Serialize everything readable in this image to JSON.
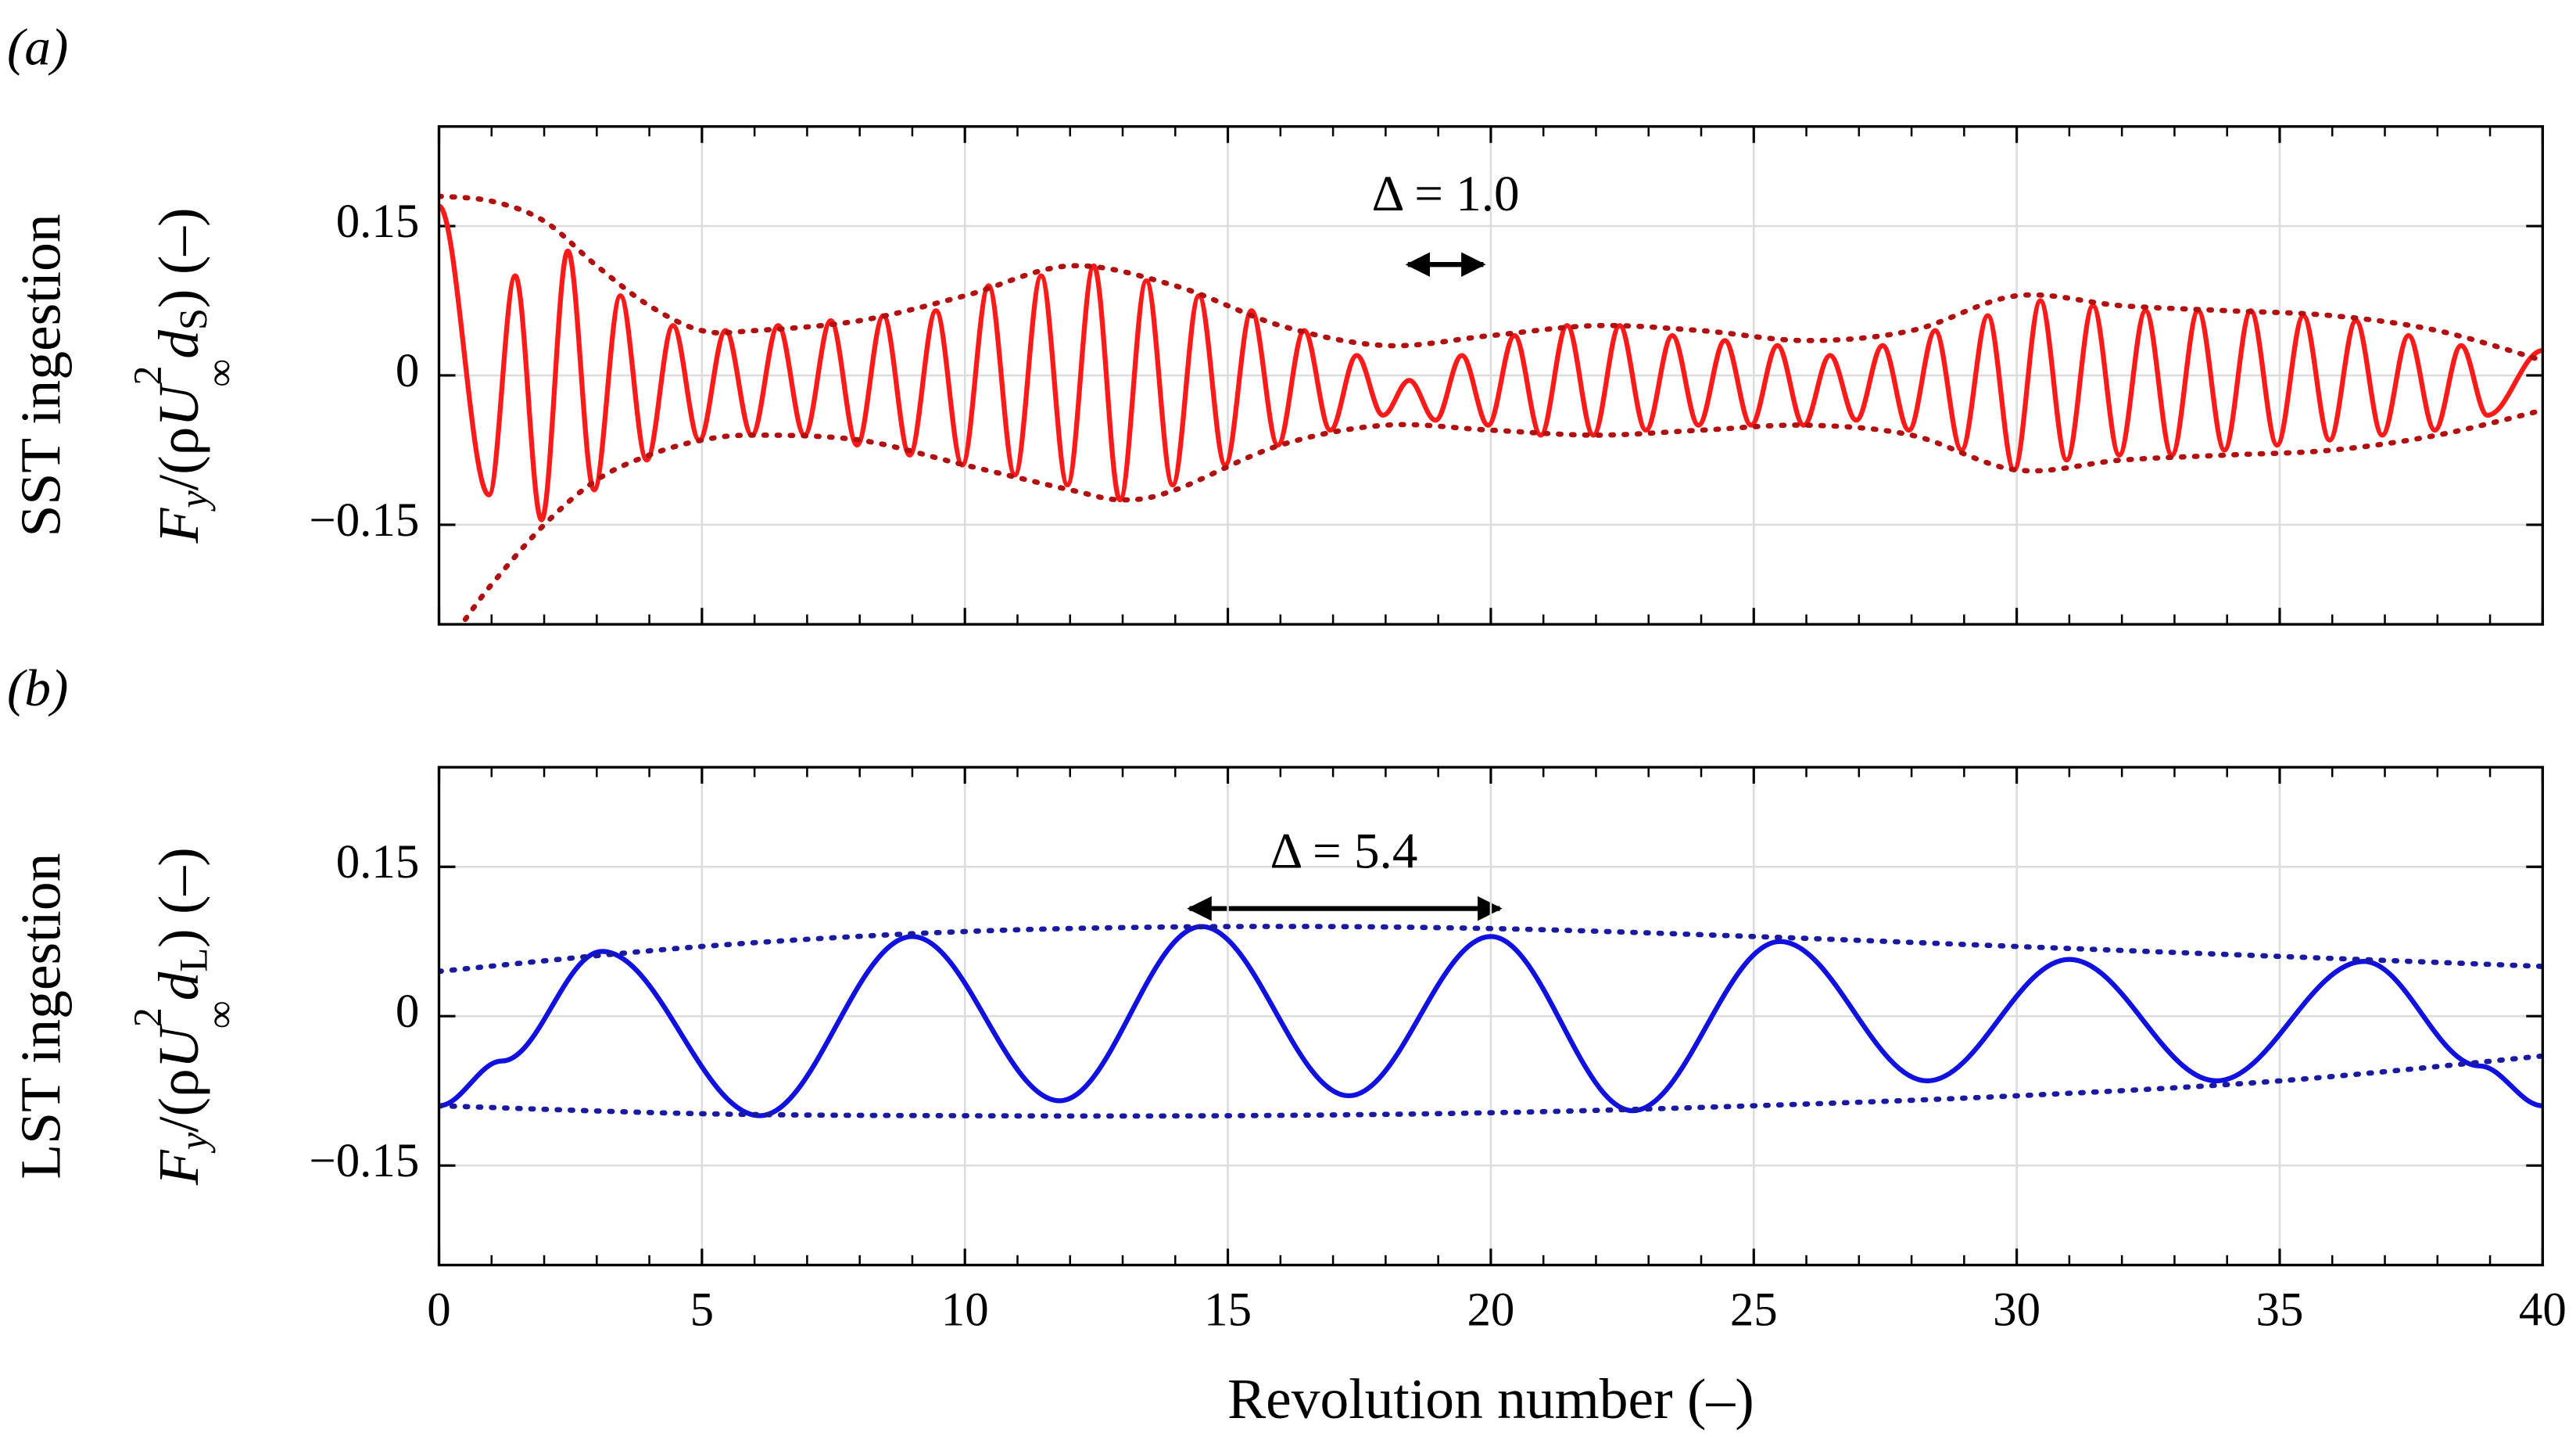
{
  "chart_data": [
    {
      "type": "line",
      "panel_label": "(a)",
      "ylabel_group": "SST ingestion",
      "ylabel": [
        "F",
        "y",
        "/(ρ",
        "U",
        "2",
        "∞",
        "d",
        "S",
        ") (–)"
      ],
      "xlim": [
        0,
        40
      ],
      "ylim": [
        -0.25,
        0.25
      ],
      "xticks": [
        0,
        5,
        10,
        15,
        20,
        25,
        30,
        35,
        40
      ],
      "show_xticklabels": false,
      "yticks": [
        {
          "value": -0.15,
          "label": "−0.15"
        },
        0,
        0.15
      ],
      "grid": true,
      "annotations": [
        {
          "text": "Δ = 1.0"
        }
      ],
      "series": [
        {
          "color": "#ff1a1a",
          "style": "solid",
          "x": [
            0,
            0.95,
            1.45,
            1.95,
            2.45,
            2.95,
            3.45,
            3.95,
            4.45,
            4.95,
            5.45,
            5.95,
            6.45,
            6.95,
            7.45,
            7.95,
            8.45,
            8.95,
            9.45,
            9.95,
            10.45,
            10.95,
            11.45,
            11.95,
            12.45,
            12.95,
            13.45,
            13.95,
            14.45,
            14.95,
            15.45,
            15.95,
            16.45,
            16.95,
            17.45,
            17.95,
            18.45,
            18.95,
            19.45,
            19.95,
            20.45,
            20.95,
            21.45,
            21.95,
            22.45,
            22.95,
            23.45,
            23.95,
            24.45,
            24.95,
            25.45,
            25.95,
            26.45,
            26.95,
            27.45,
            27.95,
            28.45,
            28.95,
            29.45,
            29.95,
            30.45,
            30.95,
            31.45,
            31.95,
            32.45,
            32.95,
            33.45,
            33.95,
            34.45,
            34.95,
            35.45,
            35.95,
            36.45,
            36.95,
            37.45,
            37.95,
            38.45,
            38.95,
            40
          ],
          "values": [
            0.17,
            -0.12,
            0.1,
            -0.145,
            0.125,
            -0.115,
            0.08,
            -0.085,
            0.05,
            -0.065,
            0.045,
            -0.06,
            0.05,
            -0.06,
            0.055,
            -0.07,
            0.06,
            -0.08,
            0.065,
            -0.09,
            0.09,
            -0.1,
            0.1,
            -0.11,
            0.11,
            -0.125,
            0.095,
            -0.11,
            0.08,
            -0.09,
            0.065,
            -0.07,
            0.045,
            -0.055,
            0.02,
            -0.04,
            -0.005,
            -0.045,
            0.02,
            -0.05,
            0.04,
            -0.06,
            0.05,
            -0.06,
            0.05,
            -0.055,
            0.04,
            -0.05,
            0.035,
            -0.05,
            0.03,
            -0.05,
            0.02,
            -0.045,
            0.03,
            -0.055,
            0.045,
            -0.075,
            0.06,
            -0.095,
            0.075,
            -0.085,
            0.07,
            -0.08,
            0.065,
            -0.08,
            0.065,
            -0.075,
            0.065,
            -0.07,
            0.06,
            -0.065,
            0.055,
            -0.06,
            0.04,
            -0.055,
            0.03,
            -0.04,
            0.025
          ]
        },
        {
          "color": "#b01010",
          "style": "dotted",
          "x": [
            0,
            1,
            2,
            3,
            4,
            5,
            6,
            8,
            10,
            12,
            14,
            16,
            18,
            20,
            22,
            24,
            26,
            28,
            30,
            32,
            34,
            36,
            38,
            40
          ],
          "values": [
            0.18,
            0.175,
            0.155,
            0.11,
            0.07,
            0.045,
            0.045,
            0.055,
            0.08,
            0.11,
            0.09,
            0.05,
            0.03,
            0.04,
            0.05,
            0.045,
            0.035,
            0.045,
            0.08,
            0.07,
            0.065,
            0.06,
            0.045,
            0.015
          ]
        },
        {
          "color": "#b01010",
          "style": "dotted",
          "x": [
            0.5,
            1,
            2,
            3,
            4,
            5,
            6,
            8,
            10,
            12,
            13,
            14,
            16,
            18,
            20,
            22,
            24,
            26,
            28,
            30,
            32,
            34,
            36,
            38,
            40
          ],
          "values": [
            -0.245,
            -0.21,
            -0.15,
            -0.105,
            -0.08,
            -0.065,
            -0.06,
            -0.065,
            -0.09,
            -0.115,
            -0.125,
            -0.115,
            -0.07,
            -0.05,
            -0.055,
            -0.06,
            -0.055,
            -0.05,
            -0.06,
            -0.095,
            -0.085,
            -0.08,
            -0.075,
            -0.06,
            -0.035
          ]
        }
      ]
    },
    {
      "type": "line",
      "panel_label": "(b)",
      "ylabel_group": "LST ingestion",
      "ylabel": [
        "F",
        "y",
        "/(ρ",
        "U",
        "2",
        "∞",
        "d",
        "L",
        ") (–)"
      ],
      "xlabel": "Revolution number (–)",
      "xlim": [
        0,
        40
      ],
      "ylim": [
        -0.25,
        0.25
      ],
      "xticks": [
        0,
        5,
        10,
        15,
        20,
        25,
        30,
        35,
        40
      ],
      "show_xticklabels": true,
      "yticks": [
        {
          "value": -0.15,
          "label": "−0.15"
        },
        0,
        0.15
      ],
      "grid": true,
      "annotations": [
        {
          "text": "Δ = 5.4"
        }
      ],
      "series": [
        {
          "color": "#1010e0",
          "style": "solid",
          "x": [
            0,
            1.2,
            3.1,
            6.1,
            9.0,
            11.8,
            14.5,
            17.3,
            20.0,
            22.7,
            25.5,
            28.3,
            31.0,
            33.8,
            36.6,
            38.8,
            40
          ],
          "values": [
            -0.09,
            -0.045,
            0.065,
            -0.1,
            0.08,
            -0.085,
            0.09,
            -0.08,
            0.08,
            -0.095,
            0.075,
            -0.065,
            0.057,
            -0.065,
            0.055,
            -0.05,
            -0.09
          ]
        },
        {
          "color": "#1a1aa0",
          "style": "dotted",
          "x": [
            0,
            5,
            10,
            15,
            20,
            25,
            30,
            35,
            40
          ],
          "values": [
            0.045,
            0.07,
            0.085,
            0.09,
            0.088,
            0.08,
            0.07,
            0.06,
            0.05
          ]
        },
        {
          "color": "#1a1aa0",
          "style": "dotted",
          "x": [
            0,
            5,
            10,
            15,
            20,
            25,
            30,
            35,
            40
          ],
          "values": [
            -0.09,
            -0.098,
            -0.1,
            -0.1,
            -0.097,
            -0.09,
            -0.08,
            -0.065,
            -0.04
          ]
        }
      ]
    }
  ]
}
